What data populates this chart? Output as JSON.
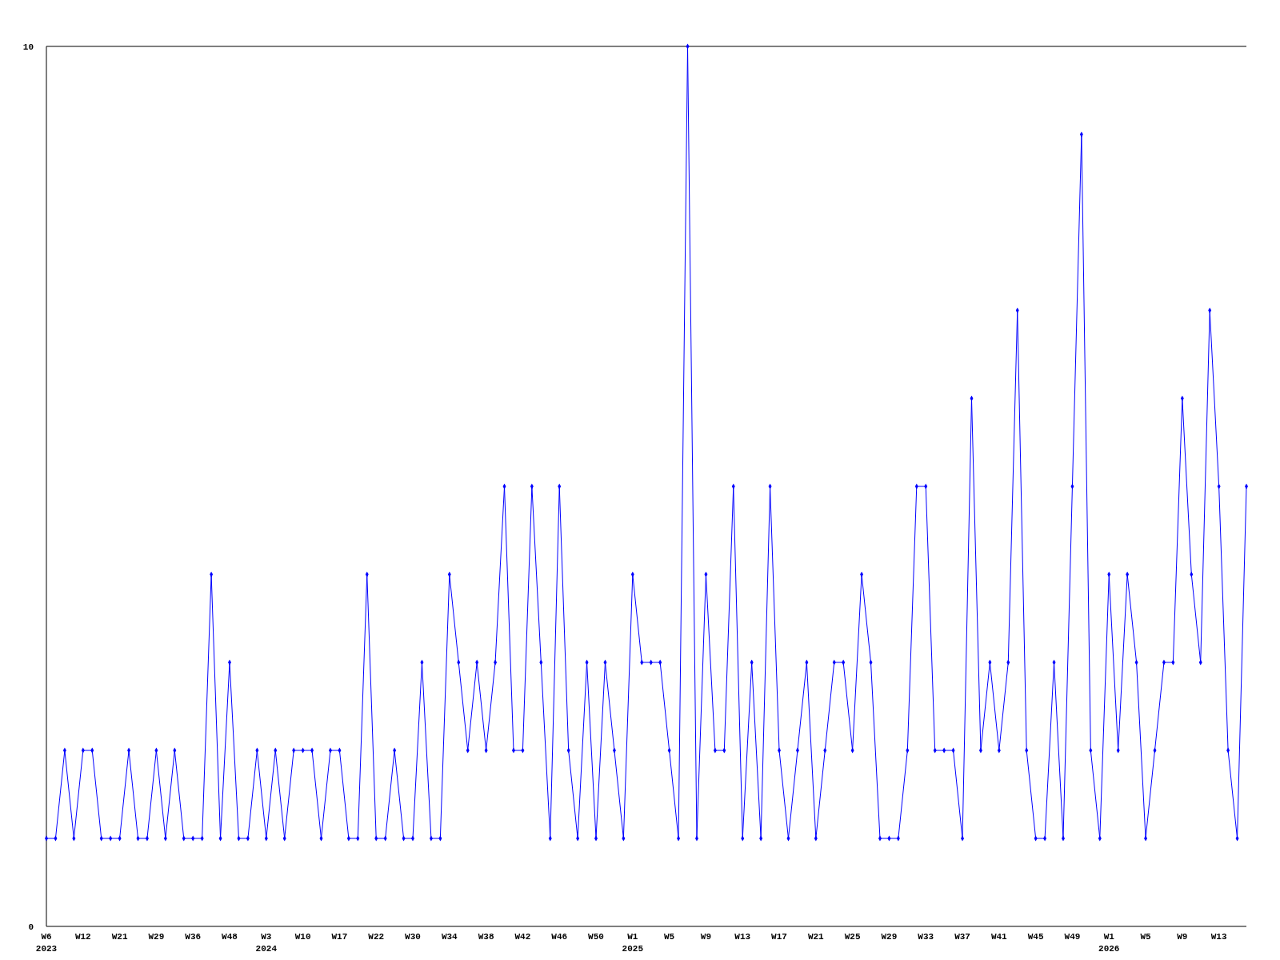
{
  "chart_data": {
    "type": "line",
    "categories": [
      "W6\n2023",
      null,
      null,
      null,
      "W12",
      null,
      null,
      null,
      "W21",
      null,
      null,
      null,
      "W29",
      null,
      null,
      null,
      "W36",
      null,
      null,
      null,
      "W48",
      null,
      null,
      null,
      "W3\n2024",
      null,
      null,
      null,
      "W10",
      null,
      null,
      null,
      "W17",
      null,
      null,
      null,
      "W22",
      null,
      null,
      null,
      "W30",
      null,
      null,
      null,
      "W34",
      null,
      null,
      null,
      "W38",
      null,
      null,
      null,
      "W42",
      null,
      null,
      null,
      "W46",
      null,
      null,
      null,
      "W50",
      null,
      null,
      null,
      "W1\n2025",
      null,
      null,
      null,
      "W5",
      null,
      null,
      null,
      "W9",
      null,
      null,
      null,
      "W13",
      null,
      null,
      null,
      "W17",
      null,
      null,
      null,
      "W21",
      null,
      null,
      null,
      "W25",
      null,
      null,
      null,
      "W29",
      null,
      null,
      null,
      "W33",
      null,
      null,
      null,
      "W37",
      null,
      null,
      null,
      "W41",
      null,
      null,
      null,
      "W45",
      null,
      null,
      null,
      "W49",
      null,
      null,
      null,
      "W1\n2026",
      null,
      null,
      null,
      "W5",
      null,
      null,
      null,
      "W9",
      null,
      null,
      null,
      "W13",
      null,
      null,
      null
    ],
    "series": [
      {
        "color": "#0000ff",
        "values": [
          1,
          1,
          2,
          1,
          2,
          2,
          1,
          1,
          1,
          2,
          1,
          1,
          2,
          1,
          2,
          1,
          1,
          1,
          4,
          1,
          3,
          1,
          1,
          2,
          1,
          2,
          1,
          2,
          2,
          2,
          1,
          2,
          2,
          1,
          1,
          4,
          1,
          1,
          2,
          1,
          1,
          3,
          1,
          1,
          4,
          3,
          2,
          3,
          2,
          3,
          5,
          2,
          2,
          5,
          3,
          1,
          5,
          2,
          1,
          3,
          1,
          3,
          2,
          1,
          4,
          3,
          3,
          3,
          2,
          1,
          10,
          1,
          4,
          2,
          2,
          5,
          1,
          3,
          1,
          5,
          2,
          1,
          2,
          3,
          1,
          2,
          3,
          3,
          2,
          4,
          3,
          1,
          1,
          1,
          2,
          5,
          5,
          2,
          2,
          2,
          1,
          6,
          2,
          3,
          2,
          3,
          7,
          2,
          1,
          1,
          3,
          1,
          5,
          9,
          2,
          1,
          4,
          2,
          4,
          3,
          1,
          2,
          3,
          3,
          6,
          4,
          3,
          7,
          5,
          2,
          1,
          5
        ]
      }
    ],
    "ylim": [
      0,
      10
    ],
    "yticks": [
      0,
      10
    ],
    "grid": false,
    "marker": "diamond",
    "line_style": "solid"
  }
}
